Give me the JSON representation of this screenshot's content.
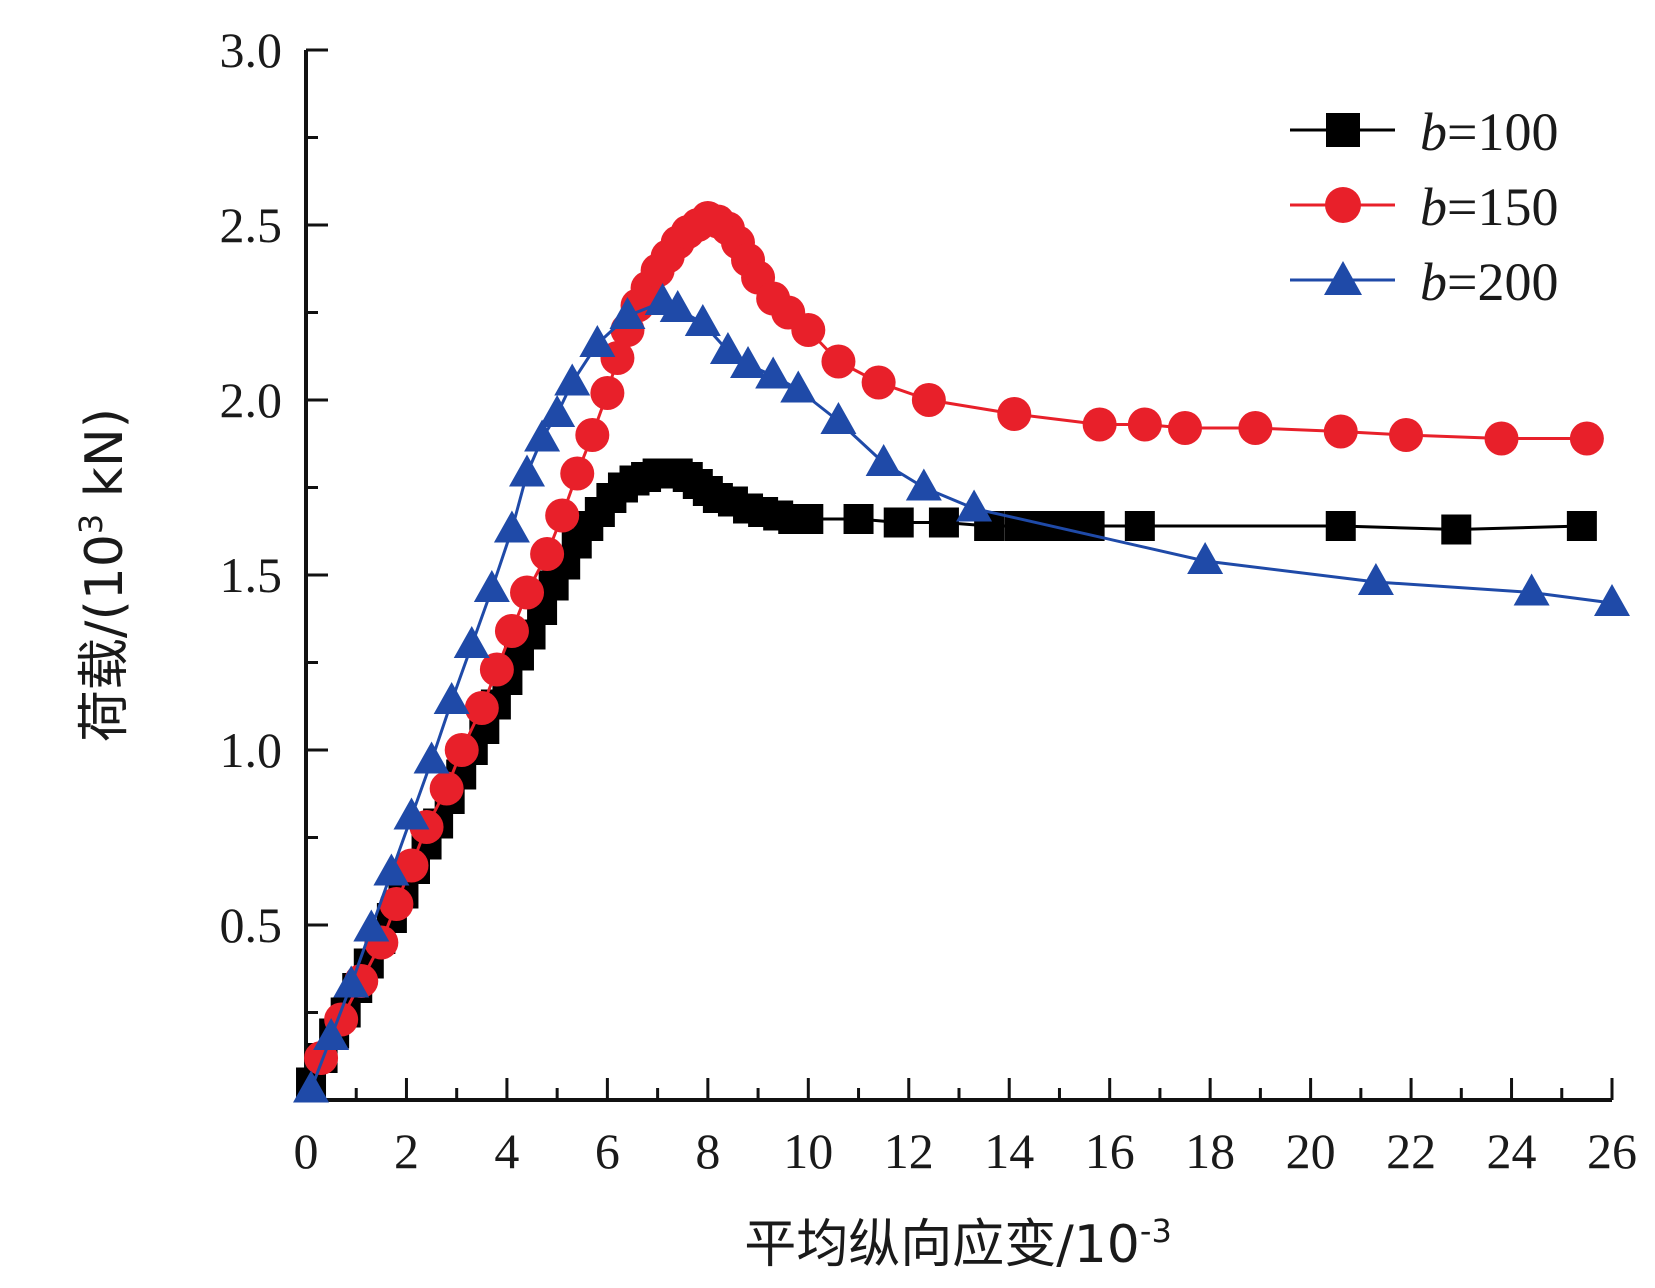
{
  "chart_data": {
    "type": "line",
    "xlabel": "平均纵向应变/10",
    "xlabel_sup": "-3",
    "ylabel": "荷载/(10",
    "ylabel_sup": "3",
    "ylabel_unit": " kN)",
    "xlim": [
      0,
      26
    ],
    "ylim": [
      0,
      3.0
    ],
    "xticks": [
      0,
      2,
      4,
      6,
      8,
      10,
      12,
      14,
      16,
      18,
      20,
      22,
      24,
      26
    ],
    "xtick_labels": [
      "0",
      "2",
      "4",
      "6",
      "8",
      "10",
      "12",
      "14",
      "16",
      "18",
      "20",
      "22",
      "24",
      "26"
    ],
    "yticks": [
      0.5,
      1.0,
      1.5,
      2.0,
      2.5,
      3.0
    ],
    "ytick_labels": [
      "0.5",
      "1.0",
      "1.5",
      "2.0",
      "2.5",
      "3.0"
    ],
    "grid": false,
    "legend_position": "top-right",
    "series": [
      {
        "name": "b=100",
        "legend_var": "b",
        "legend_value": "=100",
        "color": "#000000",
        "marker": "square",
        "x": [
          0.1,
          0.33,
          0.56,
          0.79,
          1.02,
          1.25,
          1.48,
          1.71,
          1.94,
          2.17,
          2.4,
          2.63,
          2.86,
          3.09,
          3.32,
          3.55,
          3.78,
          4.01,
          4.24,
          4.47,
          4.7,
          4.93,
          5.16,
          5.39,
          5.62,
          5.85,
          6.08,
          6.31,
          6.54,
          6.77,
          7.0,
          7.2,
          7.4,
          7.6,
          7.8,
          8.0,
          8.2,
          8.5,
          8.8,
          9.1,
          9.4,
          9.7,
          10.0,
          11.0,
          11.8,
          12.7,
          13.6,
          14.2,
          14.7,
          15.2,
          15.6,
          16.6,
          20.6,
          22.9,
          25.4
        ],
        "values": [
          0.05,
          0.12,
          0.19,
          0.25,
          0.32,
          0.39,
          0.46,
          0.52,
          0.59,
          0.66,
          0.73,
          0.79,
          0.86,
          0.93,
          1.0,
          1.06,
          1.13,
          1.2,
          1.27,
          1.33,
          1.4,
          1.47,
          1.53,
          1.59,
          1.64,
          1.68,
          1.72,
          1.75,
          1.77,
          1.78,
          1.79,
          1.79,
          1.79,
          1.78,
          1.76,
          1.74,
          1.72,
          1.71,
          1.69,
          1.68,
          1.67,
          1.66,
          1.66,
          1.66,
          1.65,
          1.65,
          1.64,
          1.64,
          1.64,
          1.64,
          1.64,
          1.64,
          1.64,
          1.63,
          1.64
        ]
      },
      {
        "name": "b=150",
        "legend_var": "b",
        "legend_value": "=150",
        "color": "#e8202a",
        "marker": "circle",
        "x": [
          0.3,
          0.7,
          1.1,
          1.5,
          1.8,
          2.1,
          2.4,
          2.8,
          3.1,
          3.5,
          3.8,
          4.1,
          4.4,
          4.8,
          5.1,
          5.4,
          5.7,
          6.0,
          6.2,
          6.4,
          6.6,
          6.8,
          7.0,
          7.2,
          7.4,
          7.6,
          7.8,
          8.0,
          8.2,
          8.4,
          8.6,
          8.8,
          9.0,
          9.3,
          9.6,
          10.0,
          10.6,
          11.4,
          12.4,
          14.1,
          15.8,
          16.7,
          17.5,
          18.9,
          20.6,
          21.9,
          23.8,
          25.5
        ],
        "values": [
          0.12,
          0.23,
          0.34,
          0.45,
          0.56,
          0.67,
          0.78,
          0.89,
          1.0,
          1.12,
          1.23,
          1.34,
          1.45,
          1.56,
          1.67,
          1.79,
          1.9,
          2.02,
          2.12,
          2.2,
          2.27,
          2.32,
          2.37,
          2.41,
          2.45,
          2.48,
          2.5,
          2.52,
          2.51,
          2.49,
          2.45,
          2.4,
          2.35,
          2.29,
          2.25,
          2.2,
          2.11,
          2.05,
          2.0,
          1.96,
          1.93,
          1.93,
          1.92,
          1.92,
          1.91,
          1.9,
          1.89,
          1.89
        ]
      },
      {
        "name": "b=200",
        "legend_var": "b",
        "legend_value": "=200",
        "color": "#1f4aa8",
        "marker": "triangle",
        "x": [
          0.1,
          0.5,
          0.9,
          1.3,
          1.7,
          2.1,
          2.5,
          2.9,
          3.3,
          3.7,
          4.1,
          4.4,
          4.7,
          5.0,
          5.3,
          5.8,
          6.4,
          7.1,
          7.4,
          7.9,
          8.4,
          8.8,
          9.3,
          9.8,
          10.6,
          11.5,
          12.3,
          13.3,
          17.9,
          21.3,
          24.4,
          26.0
        ],
        "values": [
          0.03,
          0.18,
          0.33,
          0.49,
          0.65,
          0.81,
          0.97,
          1.14,
          1.3,
          1.46,
          1.63,
          1.79,
          1.89,
          1.96,
          2.05,
          2.16,
          2.24,
          2.28,
          2.26,
          2.22,
          2.14,
          2.1,
          2.07,
          2.03,
          1.94,
          1.82,
          1.75,
          1.69,
          1.54,
          1.48,
          1.45,
          1.42
        ]
      }
    ]
  }
}
